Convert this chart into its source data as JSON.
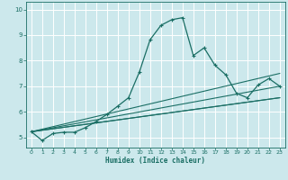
{
  "xlabel": "Humidex (Indice chaleur)",
  "bg_color": "#cce8ec",
  "grid_color": "#ffffff",
  "line_color": "#1a6e64",
  "xlim": [
    -0.5,
    23.5
  ],
  "ylim": [
    4.6,
    10.3
  ],
  "xticks": [
    0,
    1,
    2,
    3,
    4,
    5,
    6,
    7,
    8,
    9,
    10,
    11,
    12,
    13,
    14,
    15,
    16,
    17,
    18,
    19,
    20,
    21,
    22,
    23
  ],
  "yticks": [
    5,
    6,
    7,
    8,
    9,
    10
  ],
  "main_x": [
    0,
    1,
    2,
    3,
    4,
    5,
    6,
    7,
    8,
    9,
    10,
    11,
    12,
    13,
    14,
    15,
    16,
    17,
    18,
    19,
    20,
    21,
    22,
    23
  ],
  "main_y": [
    5.22,
    4.88,
    5.15,
    5.2,
    5.2,
    5.38,
    5.62,
    5.9,
    6.22,
    6.55,
    7.55,
    8.82,
    9.38,
    9.6,
    9.68,
    8.2,
    8.5,
    7.82,
    7.45,
    6.72,
    6.55,
    7.05,
    7.3,
    7.0
  ],
  "line1_x": [
    0,
    23
  ],
  "line1_y": [
    5.22,
    7.5
  ],
  "line2_x": [
    0,
    23
  ],
  "line2_y": [
    5.22,
    7.0
  ],
  "line3_x": [
    0,
    23
  ],
  "line3_y": [
    5.22,
    6.55
  ],
  "line4_x": [
    0,
    23
  ],
  "line4_y": [
    5.22,
    6.55
  ]
}
